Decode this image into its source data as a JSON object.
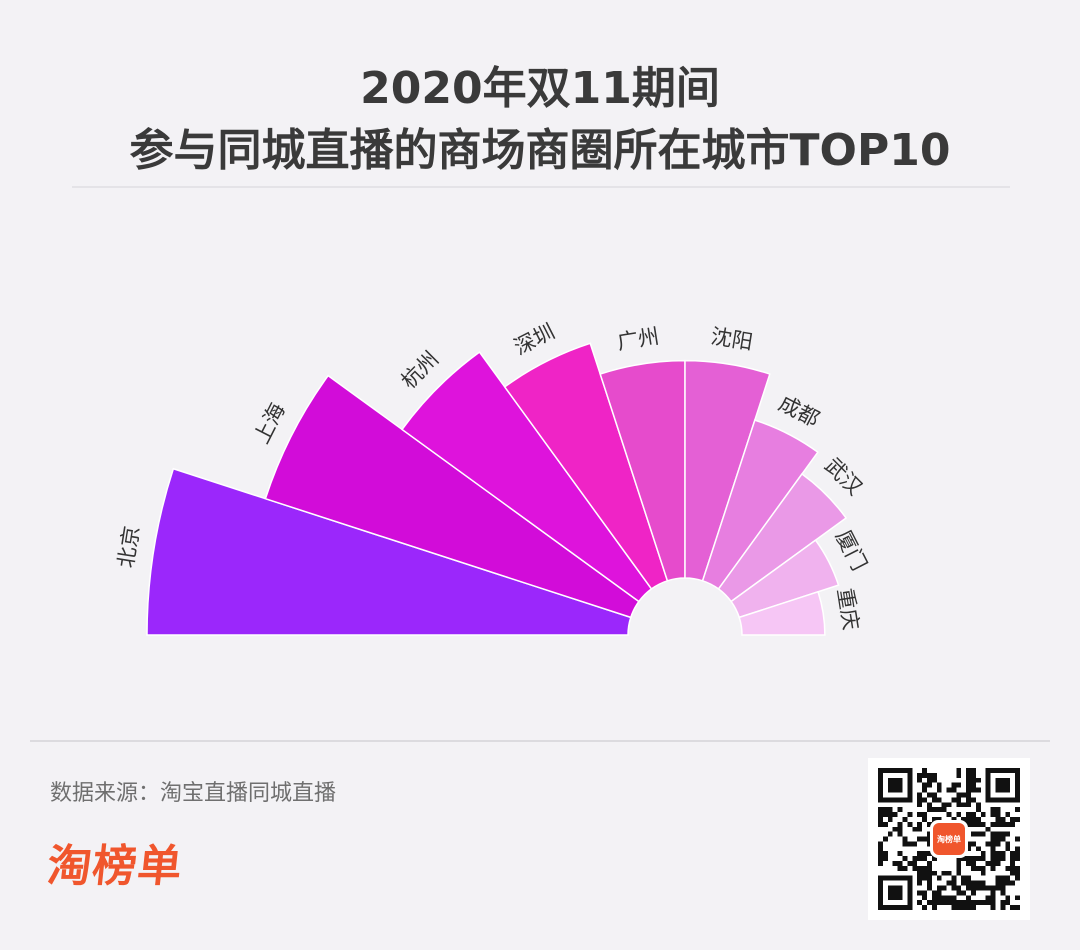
{
  "header": {
    "title_line1": "2020年双11期间",
    "title_line2": "参与同城直播的商场商圈所在城市TOP10"
  },
  "footer": {
    "source": "数据来源：淘宝直播同城直播",
    "logo": "淘榜单",
    "qr_badge": "淘榜单"
  },
  "chart_data": {
    "type": "pie",
    "variant": "nightingale-rose-semicircle",
    "title": "2020年双11期间 参与同城直播的商场商圈所在城市TOP10",
    "order": "rank",
    "categories": [
      "北京",
      "上海",
      "杭州",
      "深圳",
      "广州",
      "沈阳",
      "成都",
      "武汉",
      "厦门",
      "重庆"
    ],
    "values": [
      100,
      82,
      65,
      57,
      51,
      51,
      42,
      37,
      30,
      26
    ],
    "colors": [
      "#9b27fb",
      "#d20cd9",
      "#de13dc",
      "#ef24c6",
      "#e64bcc",
      "#e460d5",
      "#e77ee0",
      "#ea99e7",
      "#f0b2ee",
      "#f6c6f5"
    ]
  }
}
